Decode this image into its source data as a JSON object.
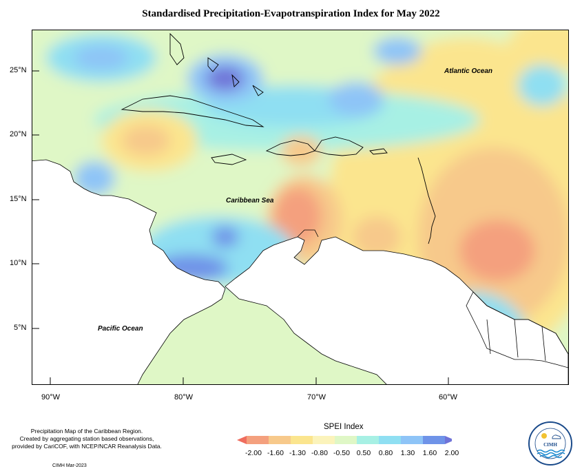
{
  "title": "Standardised Precipitation-Evapotranspiration Index for May 2022",
  "map": {
    "labels": {
      "atlantic": "Atlantic Ocean",
      "caribbean": "Caribbean Sea",
      "pacific": "Pacific Ocean"
    },
    "lat_ticks": [
      "25°N",
      "20°N",
      "15°N",
      "10°N",
      "5°N"
    ],
    "lon_ticks": [
      "90°W",
      "80°W",
      "70°W",
      "60°W"
    ]
  },
  "legend": {
    "title": "SPEI Index",
    "labels": [
      "-2.00",
      "-1.60",
      "-1.30",
      "-0.80",
      "-0.50",
      "0.50",
      "0.80",
      "1.30",
      "1.60",
      "2.00"
    ],
    "colors": [
      "#ef6d5e",
      "#f4a07e",
      "#f7c98b",
      "#fbe58e",
      "#fbf3bb",
      "#dff7c6",
      "#a7f0e4",
      "#8fdff2",
      "#8ec4f7",
      "#6f93e8",
      "#6f73d8"
    ]
  },
  "footer": {
    "lines": [
      "Precipitation Map of the Caribbean Region.",
      "Created by aggregating station based observations,",
      "provided by CariCOF, with NCEP/NCAR Reanalysis Data."
    ],
    "credit": "CIMH Mar-2023"
  },
  "logo": {
    "text": "CIMH"
  }
}
